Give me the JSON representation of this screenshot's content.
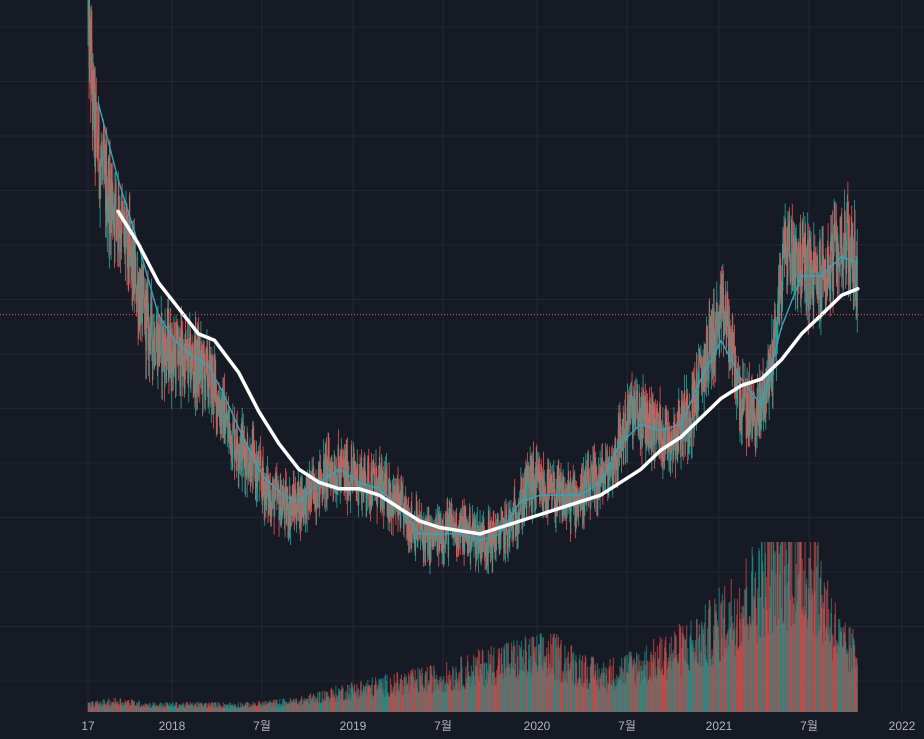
{
  "chart_data": {
    "type": "candlestick",
    "colors": {
      "background": "#161a25",
      "grid": "#232735",
      "up": "#26a69a",
      "down": "#ef5350",
      "ma_short": "#2fa7bd",
      "ma_long": "#ffffff",
      "last_price_line": "#ef5350"
    },
    "x_ticks": [
      "17",
      "2018",
      "7월",
      "2019",
      "7월",
      "2020",
      "7월",
      "2021",
      "7월",
      "2022"
    ],
    "y_range": [
      0,
      100
    ],
    "grid": true,
    "price_path": [
      [
        2017.95,
        98
      ],
      [
        2017.98,
        82
      ],
      [
        2018.03,
        72
      ],
      [
        2018.1,
        68
      ],
      [
        2018.18,
        58
      ],
      [
        2018.25,
        50
      ],
      [
        2018.32,
        47
      ],
      [
        2018.42,
        45
      ],
      [
        2018.5,
        44
      ],
      [
        2018.56,
        42
      ],
      [
        2018.65,
        34
      ],
      [
        2018.75,
        30
      ],
      [
        2018.85,
        24
      ],
      [
        2018.95,
        22
      ],
      [
        2019.05,
        24
      ],
      [
        2019.15,
        28
      ],
      [
        2019.25,
        27
      ],
      [
        2019.35,
        26
      ],
      [
        2019.45,
        24
      ],
      [
        2019.55,
        20
      ],
      [
        2019.65,
        17
      ],
      [
        2019.75,
        19
      ],
      [
        2019.85,
        18
      ],
      [
        2019.95,
        17
      ],
      [
        2020.05,
        19
      ],
      [
        2020.15,
        26
      ],
      [
        2020.25,
        24
      ],
      [
        2020.35,
        23
      ],
      [
        2020.45,
        25
      ],
      [
        2020.55,
        28
      ],
      [
        2020.65,
        37
      ],
      [
        2020.75,
        35
      ],
      [
        2020.85,
        33
      ],
      [
        2020.95,
        37
      ],
      [
        2021.05,
        48
      ],
      [
        2021.12,
        52
      ],
      [
        2021.2,
        38
      ],
      [
        2021.28,
        36
      ],
      [
        2021.35,
        44
      ],
      [
        2021.42,
        63
      ],
      [
        2021.5,
        60
      ],
      [
        2021.58,
        57
      ],
      [
        2021.65,
        60
      ],
      [
        2021.72,
        64
      ],
      [
        2021.78,
        58
      ]
    ],
    "ma_short": [
      [
        2018.0,
        85
      ],
      [
        2018.1,
        73
      ],
      [
        2018.2,
        63
      ],
      [
        2018.3,
        52
      ],
      [
        2018.38,
        48
      ],
      [
        2018.45,
        46
      ],
      [
        2018.55,
        44
      ],
      [
        2018.62,
        40
      ],
      [
        2018.72,
        33
      ],
      [
        2018.82,
        27
      ],
      [
        2018.92,
        24
      ],
      [
        2019.0,
        23
      ],
      [
        2019.1,
        26
      ],
      [
        2019.2,
        28
      ],
      [
        2019.3,
        26
      ],
      [
        2019.4,
        25
      ],
      [
        2019.5,
        22
      ],
      [
        2019.6,
        18
      ],
      [
        2019.7,
        18
      ],
      [
        2019.8,
        18
      ],
      [
        2019.9,
        17
      ],
      [
        2020.0,
        18
      ],
      [
        2020.1,
        23
      ],
      [
        2020.2,
        24
      ],
      [
        2020.3,
        24
      ],
      [
        2020.4,
        24
      ],
      [
        2020.5,
        26
      ],
      [
        2020.6,
        32
      ],
      [
        2020.7,
        35
      ],
      [
        2020.8,
        34
      ],
      [
        2020.9,
        35
      ],
      [
        2021.0,
        42
      ],
      [
        2021.1,
        48
      ],
      [
        2021.2,
        42
      ],
      [
        2021.3,
        38
      ],
      [
        2021.4,
        50
      ],
      [
        2021.5,
        58
      ],
      [
        2021.6,
        58
      ],
      [
        2021.7,
        61
      ],
      [
        2021.78,
        60
      ]
    ],
    "ma_long": [
      [
        2018.1,
        68
      ],
      [
        2018.2,
        63
      ],
      [
        2018.3,
        57
      ],
      [
        2018.4,
        53
      ],
      [
        2018.5,
        49
      ],
      [
        2018.58,
        48
      ],
      [
        2018.7,
        43
      ],
      [
        2018.8,
        37
      ],
      [
        2018.9,
        32
      ],
      [
        2019.0,
        28
      ],
      [
        2019.1,
        26
      ],
      [
        2019.2,
        25
      ],
      [
        2019.3,
        25
      ],
      [
        2019.4,
        24
      ],
      [
        2019.5,
        22
      ],
      [
        2019.6,
        20
      ],
      [
        2019.7,
        19
      ],
      [
        2019.8,
        18.5
      ],
      [
        2019.9,
        18
      ],
      [
        2020.0,
        19
      ],
      [
        2020.1,
        20
      ],
      [
        2020.2,
        21
      ],
      [
        2020.3,
        22
      ],
      [
        2020.4,
        23
      ],
      [
        2020.5,
        24
      ],
      [
        2020.6,
        26
      ],
      [
        2020.7,
        28
      ],
      [
        2020.8,
        31
      ],
      [
        2020.9,
        33
      ],
      [
        2021.0,
        36
      ],
      [
        2021.1,
        39
      ],
      [
        2021.2,
        41
      ],
      [
        2021.3,
        42
      ],
      [
        2021.4,
        45
      ],
      [
        2021.5,
        49
      ],
      [
        2021.6,
        52
      ],
      [
        2021.7,
        55
      ],
      [
        2021.78,
        56
      ]
    ],
    "last_price": 52,
    "volume_profile": [
      [
        2017.95,
        2
      ],
      [
        2018.1,
        3
      ],
      [
        2018.25,
        2
      ],
      [
        2018.5,
        2
      ],
      [
        2018.75,
        2
      ],
      [
        2019.0,
        3
      ],
      [
        2019.25,
        6
      ],
      [
        2019.5,
        8
      ],
      [
        2019.75,
        10
      ],
      [
        2020.0,
        14
      ],
      [
        2020.25,
        16
      ],
      [
        2020.5,
        10
      ],
      [
        2020.75,
        14
      ],
      [
        2021.0,
        20
      ],
      [
        2021.2,
        30
      ],
      [
        2021.4,
        42
      ],
      [
        2021.55,
        40
      ],
      [
        2021.7,
        18
      ],
      [
        2021.78,
        16
      ]
    ]
  }
}
